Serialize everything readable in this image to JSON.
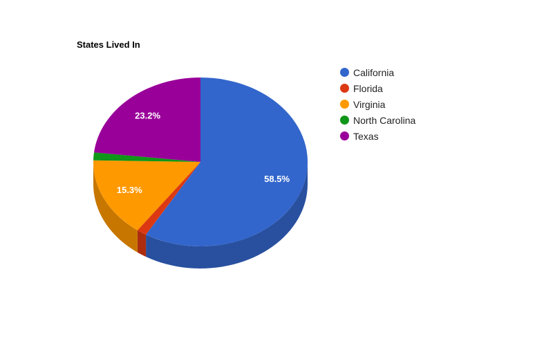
{
  "chart_data": {
    "type": "pie",
    "title": "States Lived In",
    "is_3d": true,
    "legend_position": "right",
    "slices": [
      {
        "label": "California",
        "value": 58.5,
        "display": "58.5%",
        "color": "#3366cc"
      },
      {
        "label": "Florida",
        "value": 1.5,
        "display": "",
        "color": "#dc3912"
      },
      {
        "label": "Virginia",
        "value": 15.3,
        "display": "15.3%",
        "color": "#ff9900"
      },
      {
        "label": "North Carolina",
        "value": 1.5,
        "display": "",
        "color": "#109618"
      },
      {
        "label": "Texas",
        "value": 23.2,
        "display": "23.2%",
        "color": "#990099"
      }
    ]
  }
}
